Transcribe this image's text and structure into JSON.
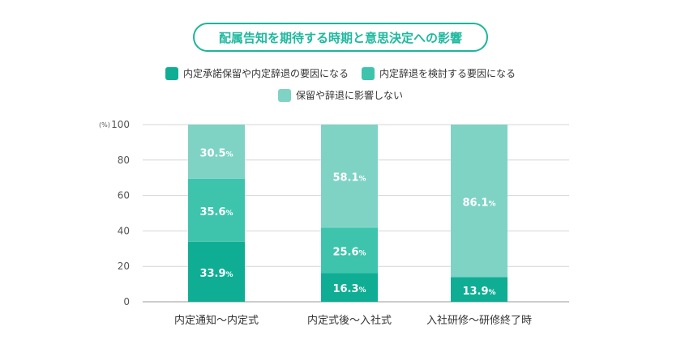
{
  "title": "配属告知を期待する時期と意思決定への影響",
  "legend": [
    {
      "label": "内定承諾保留や内定辞退の要因になる",
      "color": "#0fae94"
    },
    {
      "label": "内定辞退を検討する要因になる",
      "color": "#3ec4ad"
    },
    {
      "label": "保留や辞退に影響しない",
      "color": "#7fd3c5"
    }
  ],
  "chart_data": {
    "type": "bar",
    "stacked": true,
    "categories": [
      "内定通知〜内定式",
      "内定式後〜入社式",
      "入社研修〜研修終了時"
    ],
    "series": [
      {
        "name": "内定承諾保留や内定辞退の要因になる",
        "color": "#0fae94",
        "values": [
          33.9,
          16.3,
          13.9
        ]
      },
      {
        "name": "内定辞退を検討する要因になる",
        "color": "#3ec4ad",
        "values": [
          35.6,
          25.6,
          0
        ]
      },
      {
        "name": "保留や辞退に影響しない",
        "color": "#7fd3c5",
        "values": [
          30.5,
          58.1,
          86.1
        ]
      }
    ],
    "labels": [
      [
        "33.9",
        "35.6",
        "30.5"
      ],
      [
        "16.3",
        "25.6",
        "58.1"
      ],
      [
        "13.9",
        "0",
        "86.1"
      ]
    ],
    "unit_suffix": "%",
    "ylabel": "(%)",
    "ylim": [
      0,
      100
    ],
    "yticks": [
      0,
      20,
      40,
      60,
      80,
      100
    ],
    "grid": true
  }
}
